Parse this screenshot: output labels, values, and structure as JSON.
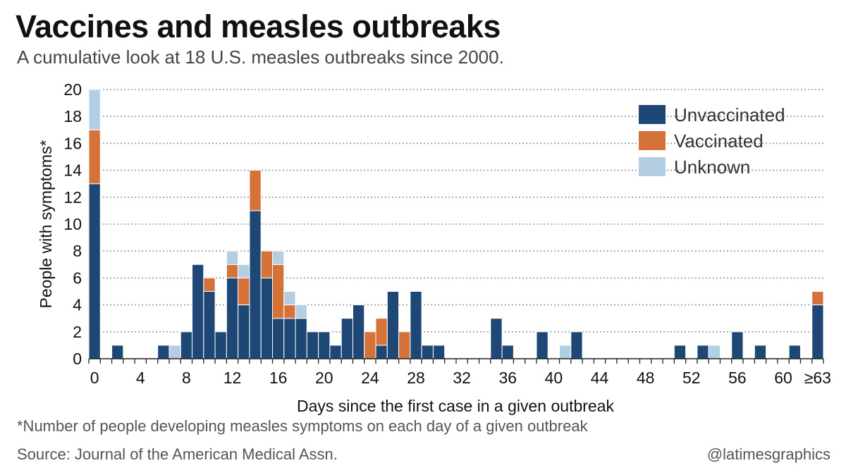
{
  "header": {
    "title": "Vaccines and measles outbreaks",
    "subtitle": "A cumulative look at 18 U.S. measles outbreaks since 2000."
  },
  "footer": {
    "footnote": "*Number of people developing measles symptoms on each day of a given outbreak",
    "source": "Source: Journal of the American Medical Assn.",
    "credit": "@latimesgraphics"
  },
  "colors": {
    "unvaccinated": "#1f4776",
    "vaccinated": "#d4723a",
    "unknown": "#b3cde3",
    "grid": "#9a9a9a"
  },
  "chart_data": {
    "type": "bar",
    "stacked": true,
    "xlabel": "Days since the first case in a given outbreak",
    "ylabel": "People with symptoms*",
    "ylim": [
      0,
      20
    ],
    "y_ticks": [
      0,
      2,
      4,
      6,
      8,
      10,
      12,
      14,
      16,
      18,
      20
    ],
    "x_ticks": [
      "0",
      "4",
      "8",
      "12",
      "16",
      "20",
      "24",
      "28",
      "32",
      "36",
      "40",
      "44",
      "48",
      "52",
      "56",
      "60",
      "≥63"
    ],
    "grid": "horizontal dotted",
    "legend_position": "top-right",
    "categories": [
      "0",
      "1",
      "2",
      "3",
      "4",
      "5",
      "6",
      "7",
      "8",
      "9",
      "10",
      "11",
      "12",
      "13",
      "14",
      "15",
      "16",
      "17",
      "18",
      "19",
      "20",
      "21",
      "22",
      "23",
      "24",
      "25",
      "26",
      "27",
      "28",
      "29",
      "30",
      "31",
      "32",
      "33",
      "34",
      "35",
      "36",
      "37",
      "38",
      "39",
      "40",
      "41",
      "42",
      "43",
      "44",
      "45",
      "46",
      "47",
      "48",
      "49",
      "50",
      "51",
      "52",
      "53",
      "54",
      "55",
      "56",
      "57",
      "58",
      "59",
      "60",
      "61",
      "62",
      "≥63"
    ],
    "series": [
      {
        "name": "Unvaccinated",
        "values": [
          13,
          0,
          1,
          0,
          0,
          0,
          1,
          0,
          2,
          7,
          5,
          2,
          6,
          4,
          11,
          6,
          3,
          3,
          3,
          2,
          2,
          1,
          3,
          4,
          0,
          1,
          5,
          0,
          5,
          1,
          1,
          0,
          0,
          0,
          0,
          3,
          1,
          0,
          0,
          2,
          0,
          0,
          2,
          0,
          0,
          0,
          0,
          0,
          0,
          0,
          0,
          1,
          0,
          1,
          0,
          0,
          2,
          0,
          1,
          0,
          0,
          1,
          0,
          4
        ]
      },
      {
        "name": "Vaccinated",
        "values": [
          4,
          0,
          0,
          0,
          0,
          0,
          0,
          0,
          0,
          0,
          1,
          0,
          1,
          2,
          3,
          2,
          4,
          1,
          0,
          0,
          0,
          0,
          0,
          0,
          2,
          2,
          0,
          2,
          0,
          0,
          0,
          0,
          0,
          0,
          0,
          0,
          0,
          0,
          0,
          0,
          0,
          0,
          0,
          0,
          0,
          0,
          0,
          0,
          0,
          0,
          0,
          0,
          0,
          0,
          0,
          0,
          0,
          0,
          0,
          0,
          0,
          0,
          0,
          1
        ]
      },
      {
        "name": "Unknown",
        "values": [
          3,
          0,
          0,
          0,
          0,
          0,
          0,
          1,
          0,
          0,
          0,
          0,
          1,
          1,
          0,
          0,
          1,
          1,
          1,
          0,
          0,
          0,
          0,
          0,
          0,
          0,
          0,
          0,
          0,
          0,
          0,
          0,
          0,
          0,
          0,
          0,
          0,
          0,
          0,
          0,
          0,
          1,
          0,
          0,
          0,
          0,
          0,
          0,
          0,
          0,
          0,
          0,
          0,
          0,
          1,
          0,
          0,
          0,
          0,
          0,
          0,
          0,
          0,
          0
        ]
      }
    ]
  }
}
